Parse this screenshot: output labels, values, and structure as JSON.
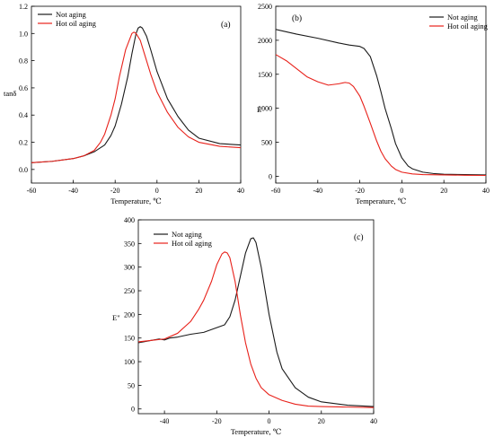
{
  "series_style": {
    "not_aging_color": "#1a1a1a",
    "hot_oil_color": "#e8211a"
  },
  "chart_data": [
    {
      "id": "a",
      "type": "line",
      "panel_label": "(a)",
      "xlabel": "Temperature, ℃",
      "ylabel": "tanδ",
      "xlim": [
        -60,
        40
      ],
      "ylim": [
        -0.1,
        1.2
      ],
      "xticks": [
        -60,
        -40,
        -20,
        0,
        20,
        40
      ],
      "yticks": [
        0.0,
        0.2,
        0.4,
        0.6,
        0.8,
        1.0,
        1.2
      ],
      "ytick_labels": [
        "0.0",
        "0.2",
        "0.4",
        "0.6",
        "0.8",
        "1.0",
        "1.2"
      ],
      "xtick_labels": [
        "-60",
        "-40",
        "-20",
        "0",
        "20",
        "40"
      ],
      "legend_position": "top-left",
      "grid": false,
      "series": [
        {
          "name": "Not aging",
          "x": [
            -60,
            -50,
            -40,
            -35,
            -30,
            -25,
            -22,
            -20,
            -17,
            -14,
            -12,
            -10,
            -9,
            -8,
            -7,
            -5,
            -3,
            0,
            5,
            10,
            15,
            20,
            30,
            40
          ],
          "y": [
            0.05,
            0.06,
            0.08,
            0.1,
            0.13,
            0.18,
            0.25,
            0.32,
            0.48,
            0.68,
            0.85,
            1.0,
            1.04,
            1.05,
            1.04,
            0.98,
            0.88,
            0.72,
            0.52,
            0.39,
            0.29,
            0.23,
            0.19,
            0.18
          ]
        },
        {
          "name": "Hot oil aging",
          "x": [
            -60,
            -50,
            -40,
            -35,
            -30,
            -27,
            -25,
            -22,
            -20,
            -18,
            -15,
            -12,
            -11,
            -10,
            -8,
            -6,
            -3,
            0,
            5,
            10,
            15,
            20,
            30,
            40
          ],
          "y": [
            0.05,
            0.06,
            0.08,
            0.1,
            0.14,
            0.2,
            0.26,
            0.4,
            0.52,
            0.68,
            0.88,
            1.0,
            1.01,
            1.0,
            0.95,
            0.85,
            0.7,
            0.57,
            0.42,
            0.31,
            0.24,
            0.2,
            0.17,
            0.16
          ]
        }
      ]
    },
    {
      "id": "b",
      "type": "line",
      "panel_label": "(b)",
      "xlabel": "Temperature, ℃",
      "ylabel": "E'",
      "xlim": [
        -60,
        40
      ],
      "ylim": [
        -100,
        2500
      ],
      "xticks": [
        -60,
        -40,
        -20,
        0,
        20,
        40
      ],
      "yticks": [
        0,
        500,
        1000,
        1500,
        2000,
        2500
      ],
      "ytick_labels": [
        "0",
        "500",
        "1000",
        "1500",
        "2000",
        "2500"
      ],
      "xtick_labels": [
        "-60",
        "-40",
        "-20",
        "0",
        "20",
        "40"
      ],
      "legend_position": "top-right",
      "grid": false,
      "series": [
        {
          "name": "Not aging",
          "x": [
            -60,
            -50,
            -40,
            -30,
            -25,
            -20,
            -18,
            -15,
            -12,
            -10,
            -8,
            -5,
            -3,
            0,
            3,
            5,
            10,
            15,
            20,
            30,
            40
          ],
          "y": [
            2160,
            2090,
            2030,
            1960,
            1930,
            1910,
            1880,
            1760,
            1480,
            1250,
            1000,
            700,
            480,
            270,
            150,
            110,
            60,
            40,
            30,
            25,
            20
          ]
        },
        {
          "name": "Hot oil aging",
          "x": [
            -60,
            -55,
            -50,
            -45,
            -40,
            -35,
            -30,
            -27,
            -25,
            -23,
            -20,
            -18,
            -15,
            -12,
            -10,
            -8,
            -5,
            -3,
            0,
            5,
            10,
            20,
            30,
            40
          ],
          "y": [
            1790,
            1700,
            1580,
            1460,
            1390,
            1340,
            1360,
            1380,
            1370,
            1320,
            1180,
            1030,
            780,
            520,
            370,
            260,
            150,
            100,
            60,
            35,
            25,
            20,
            15,
            12
          ]
        }
      ]
    },
    {
      "id": "c",
      "type": "line",
      "panel_label": "(c)",
      "xlabel": "Temperature, ℃",
      "ylabel": "E\"",
      "xlim": [
        -50,
        40
      ],
      "ylim": [
        -10,
        400
      ],
      "xticks": [
        -40,
        -20,
        0,
        20,
        40
      ],
      "yticks": [
        0,
        50,
        100,
        150,
        200,
        250,
        300,
        350,
        400
      ],
      "ytick_labels": [
        "0",
        "50",
        "100",
        "150",
        "200",
        "250",
        "300",
        "350",
        "400"
      ],
      "xtick_labels": [
        "-40",
        "-20",
        "0",
        "20",
        "40"
      ],
      "legend_position": "top-left",
      "grid": false,
      "series": [
        {
          "name": "Not aging",
          "x": [
            -50,
            -45,
            -42,
            -40,
            -38,
            -35,
            -30,
            -25,
            -20,
            -17,
            -15,
            -13,
            -11,
            -9,
            -7,
            -6,
            -5,
            -3,
            0,
            3,
            5,
            10,
            15,
            20,
            30,
            40
          ],
          "y": [
            140,
            145,
            148,
            146,
            150,
            152,
            158,
            162,
            172,
            178,
            195,
            230,
            280,
            330,
            360,
            362,
            352,
            300,
            200,
            120,
            85,
            45,
            25,
            15,
            8,
            5
          ]
        },
        {
          "name": "Hot oil aging",
          "x": [
            -50,
            -45,
            -40,
            -35,
            -30,
            -27,
            -25,
            -22,
            -20,
            -18,
            -17,
            -16,
            -15,
            -13,
            -11,
            -9,
            -7,
            -5,
            -3,
            0,
            5,
            10,
            15,
            20,
            30,
            40
          ],
          "y": [
            142,
            145,
            148,
            160,
            185,
            210,
            230,
            270,
            305,
            328,
            332,
            330,
            320,
            270,
            200,
            140,
            95,
            65,
            45,
            30,
            18,
            10,
            6,
            5,
            4,
            3
          ]
        }
      ]
    }
  ]
}
